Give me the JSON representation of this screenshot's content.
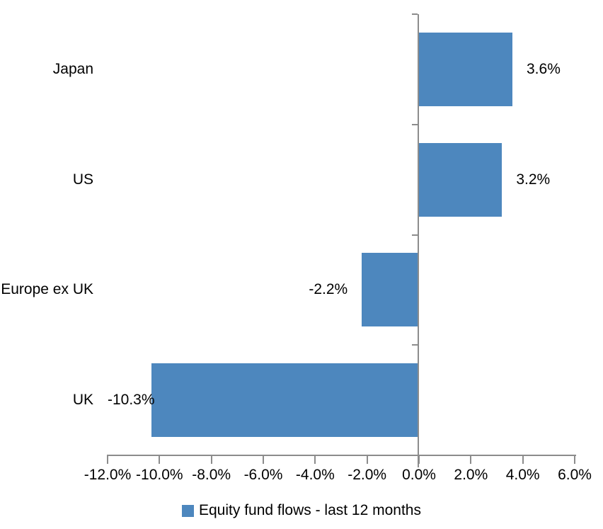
{
  "chart_data": {
    "type": "bar",
    "orientation": "horizontal",
    "title": "",
    "categories": [
      "Japan",
      "US",
      "Europe ex UK",
      "UK"
    ],
    "values": [
      3.6,
      3.2,
      -2.2,
      -10.3
    ],
    "data_labels": [
      "3.6%",
      "3.2%",
      "-2.2%",
      "-10.3%"
    ],
    "series": [
      {
        "name": "Equity fund flows - last 12 months",
        "values": [
          3.6,
          3.2,
          -2.2,
          -10.3
        ]
      }
    ],
    "xlim": [
      -12,
      6
    ],
    "x_tick_step": 2,
    "x_tick_labels": [
      "-12.0%",
      "-10.0%",
      "-8.0%",
      "-6.0%",
      "-4.0%",
      "-2.0%",
      "0.0%",
      "2.0%",
      "4.0%",
      "6.0%"
    ],
    "grid": false,
    "legend": {
      "label": "Equity fund flows - last 12 months",
      "position": "bottom-center"
    },
    "colors": {
      "bar": "#4d87be",
      "axis": "#8c8c8c",
      "text": "#000000",
      "background": "#ffffff"
    }
  }
}
